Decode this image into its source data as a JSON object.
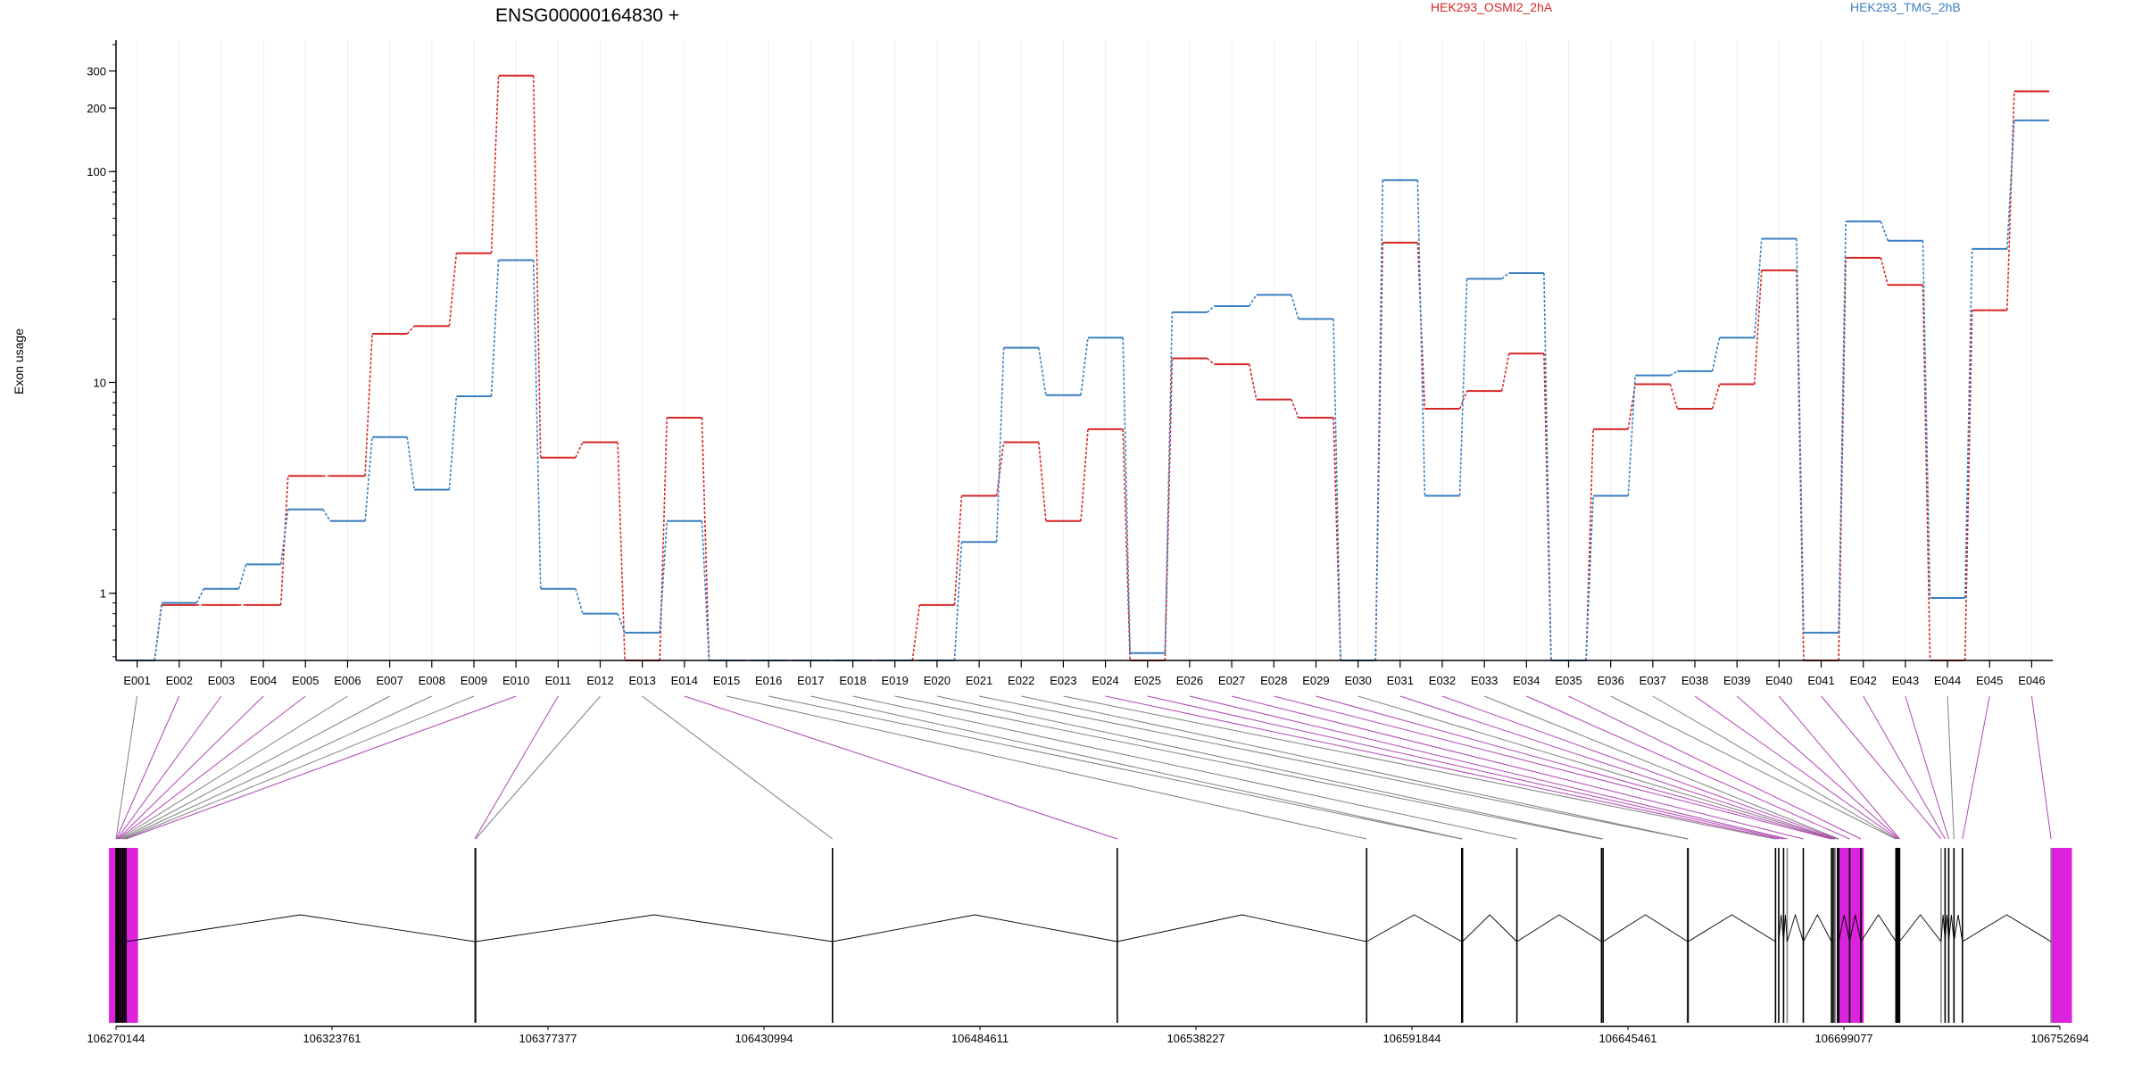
{
  "chart_data": {
    "type": "line",
    "title": "ENSG00000164830 +",
    "ylabel": "Exon usage",
    "yscale": "log",
    "ylim": [
      0.48,
      420
    ],
    "yticks": [
      1,
      10,
      100,
      200,
      300
    ],
    "ytick_labels": [
      "1",
      "10",
      "100",
      "200",
      "300"
    ],
    "grid": "vertical-minor",
    "legend_position": "top-right",
    "colors": {
      "HEK293_OSMI2_2hA": "#d62728",
      "HEK293_TMG_2hB": "#3a7fc1",
      "connector_normal": "#7f7f7f",
      "connector_highlight": "#b245b2",
      "exon_highlight": "#dd22dd"
    },
    "categories": [
      "E001",
      "E002",
      "E003",
      "E004",
      "E005",
      "E006",
      "E007",
      "E008",
      "E009",
      "E010",
      "E011",
      "E012",
      "E013",
      "E014",
      "E015",
      "E016",
      "E017",
      "E018",
      "E019",
      "E020",
      "E021",
      "E022",
      "E023",
      "E024",
      "E025",
      "E026",
      "E027",
      "E028",
      "E029",
      "E030",
      "E031",
      "E032",
      "E033",
      "E034",
      "E035",
      "E036",
      "E037",
      "E038",
      "E039",
      "E040",
      "E041",
      "E042",
      "E043",
      "E044",
      "E045",
      "E046"
    ],
    "series": [
      {
        "name": "HEK293_OSMI2_2hA",
        "values": [
          0.48,
          0.88,
          0.88,
          0.88,
          3.6,
          3.6,
          17,
          18.5,
          41,
          285,
          4.4,
          5.2,
          0.48,
          6.8,
          0.48,
          0.48,
          0.48,
          0.48,
          0.48,
          0.88,
          2.9,
          5.2,
          2.2,
          6,
          0.48,
          13,
          12.2,
          8.3,
          6.8,
          0.48,
          46,
          7.5,
          9.1,
          13.7,
          0.48,
          6,
          9.8,
          7.5,
          9.8,
          34,
          0.48,
          39,
          29,
          0.48,
          22,
          240
        ]
      },
      {
        "name": "HEK293_TMG_2hB",
        "values": [
          0.48,
          0.9,
          1.05,
          1.37,
          2.5,
          2.2,
          5.5,
          3.1,
          8.6,
          38,
          1.05,
          0.8,
          0.65,
          2.2,
          0.48,
          0.48,
          0.48,
          0.48,
          0.48,
          0.48,
          1.75,
          14.6,
          8.7,
          16.3,
          0.52,
          21.5,
          23,
          26,
          20,
          0.48,
          91,
          2.9,
          31,
          33,
          0.48,
          2.9,
          10.8,
          11.3,
          16.3,
          48,
          0.65,
          58,
          47,
          0.95,
          43,
          175
        ]
      }
    ],
    "gene_model": {
      "coord_range": [
        106270144,
        106752694
      ],
      "coord_ticks": [
        106270144,
        106323761,
        106377377,
        106430994,
        106484611,
        106538227,
        106591844,
        106645461,
        106699077,
        106752694
      ],
      "exon_coords": [
        106270144,
        106270200,
        106270400,
        106270600,
        106270800,
        106271000,
        106271400,
        106271800,
        106272200,
        106272600,
        106359200,
        106359400,
        106448000,
        106518700,
        106580600,
        106604200,
        106604400,
        106617900,
        106638900,
        106639300,
        106660300,
        106660400,
        106682100,
        106682900,
        106684100,
        106685000,
        106689000,
        106696000,
        106696400,
        106696800,
        106696900,
        106697500,
        106697800,
        106700500,
        106703300,
        106712000,
        106712200,
        106712500,
        106712800,
        106712900,
        106723200,
        106724200,
        106725100,
        106726400,
        106728500,
        106750500
      ],
      "highlighted_exons": [
        "E002",
        "E003",
        "E004",
        "E005",
        "E010",
        "E011",
        "E014",
        "E024",
        "E025",
        "E026",
        "E027",
        "E028",
        "E029",
        "E031",
        "E032",
        "E034",
        "E035",
        "E038",
        "E039",
        "E040",
        "E041",
        "E042",
        "E043",
        "E045",
        "E046"
      ]
    }
  }
}
